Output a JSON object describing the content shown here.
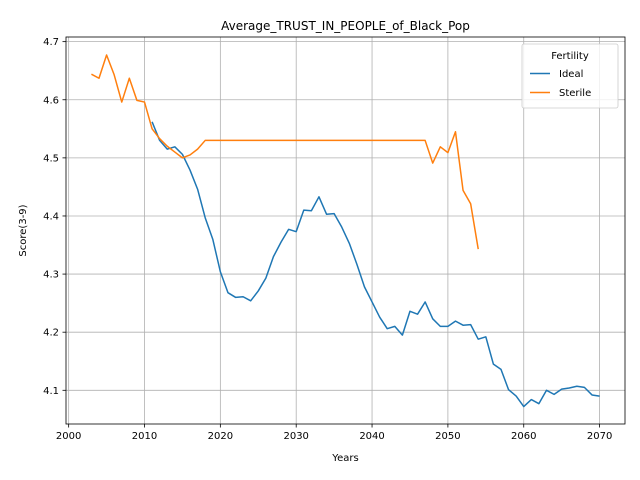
{
  "chart_data": {
    "type": "line",
    "title": "Average_TRUST_IN_PEOPLE_of_Black_Pop",
    "xlabel": "Years",
    "ylabel": "Score(3-9)",
    "xlim": [
      1999.65,
      2073.35
    ],
    "ylim": [
      4.042,
      4.708
    ],
    "xticks": [
      2000,
      2010,
      2020,
      2030,
      2040,
      2050,
      2060,
      2070
    ],
    "yticks": [
      4.1,
      4.2,
      4.3,
      4.4,
      4.5,
      4.6,
      4.7
    ],
    "grid": true,
    "legend": {
      "title": "Fertility",
      "placement": "top-right"
    },
    "series": [
      {
        "name": "Ideal",
        "color": "#1f77b4",
        "x": [
          2011,
          2012,
          2013,
          2014,
          2015,
          2016,
          2017,
          2018,
          2019,
          2020,
          2021,
          2022,
          2023,
          2024,
          2025,
          2026,
          2027,
          2028,
          2029,
          2030,
          2031,
          2032,
          2033,
          2034,
          2035,
          2036,
          2037,
          2038,
          2039,
          2040,
          2041,
          2042,
          2043,
          2044,
          2045,
          2046,
          2047,
          2048,
          2049,
          2050,
          2051,
          2052,
          2053,
          2054,
          2055,
          2056,
          2057,
          2058,
          2059,
          2060,
          2061,
          2062,
          2063,
          2064,
          2065,
          2066,
          2067,
          2068,
          2069,
          2070
        ],
        "y": [
          4.562,
          4.53,
          4.515,
          4.519,
          4.506,
          4.479,
          4.446,
          4.397,
          4.36,
          4.304,
          4.268,
          4.26,
          4.261,
          4.254,
          4.271,
          4.293,
          4.33,
          4.355,
          4.377,
          4.373,
          4.41,
          4.409,
          4.433,
          4.403,
          4.404,
          4.381,
          4.353,
          4.317,
          4.278,
          4.252,
          4.226,
          4.206,
          4.21,
          4.195,
          4.236,
          4.231,
          4.252,
          4.223,
          4.21,
          4.21,
          4.219,
          4.212,
          4.213,
          4.188,
          4.192,
          4.145,
          4.136,
          4.101,
          4.09,
          4.072,
          4.084,
          4.077,
          4.1,
          4.093,
          4.102,
          4.104,
          4.107,
          4.105,
          4.092,
          4.09
        ]
      },
      {
        "name": "Sterile",
        "color": "#ff7f0e",
        "x": [
          2003,
          2004,
          2005,
          2006,
          2007,
          2008,
          2009,
          2010,
          2011,
          2012,
          2013,
          2014,
          2015,
          2016,
          2017,
          2018,
          2019,
          2020,
          2021,
          2022,
          2023,
          2024,
          2025,
          2026,
          2027,
          2028,
          2029,
          2030,
          2031,
          2032,
          2033,
          2034,
          2035,
          2036,
          2037,
          2038,
          2039,
          2040,
          2041,
          2042,
          2043,
          2044,
          2045,
          2046,
          2047,
          2048,
          2049,
          2050,
          2051,
          2052,
          2053,
          2054
        ],
        "y": [
          4.644,
          4.637,
          4.677,
          4.643,
          4.596,
          4.637,
          4.599,
          4.596,
          4.55,
          4.533,
          4.52,
          4.51,
          4.5,
          4.505,
          4.515,
          4.53,
          4.53,
          4.53,
          4.53,
          4.53,
          4.53,
          4.53,
          4.53,
          4.53,
          4.53,
          4.53,
          4.53,
          4.53,
          4.53,
          4.53,
          4.53,
          4.53,
          4.53,
          4.53,
          4.53,
          4.53,
          4.53,
          4.53,
          4.53,
          4.53,
          4.53,
          4.53,
          4.53,
          4.53,
          4.53,
          4.491,
          4.519,
          4.509,
          4.545,
          4.444,
          4.421,
          4.343
        ]
      }
    ]
  }
}
